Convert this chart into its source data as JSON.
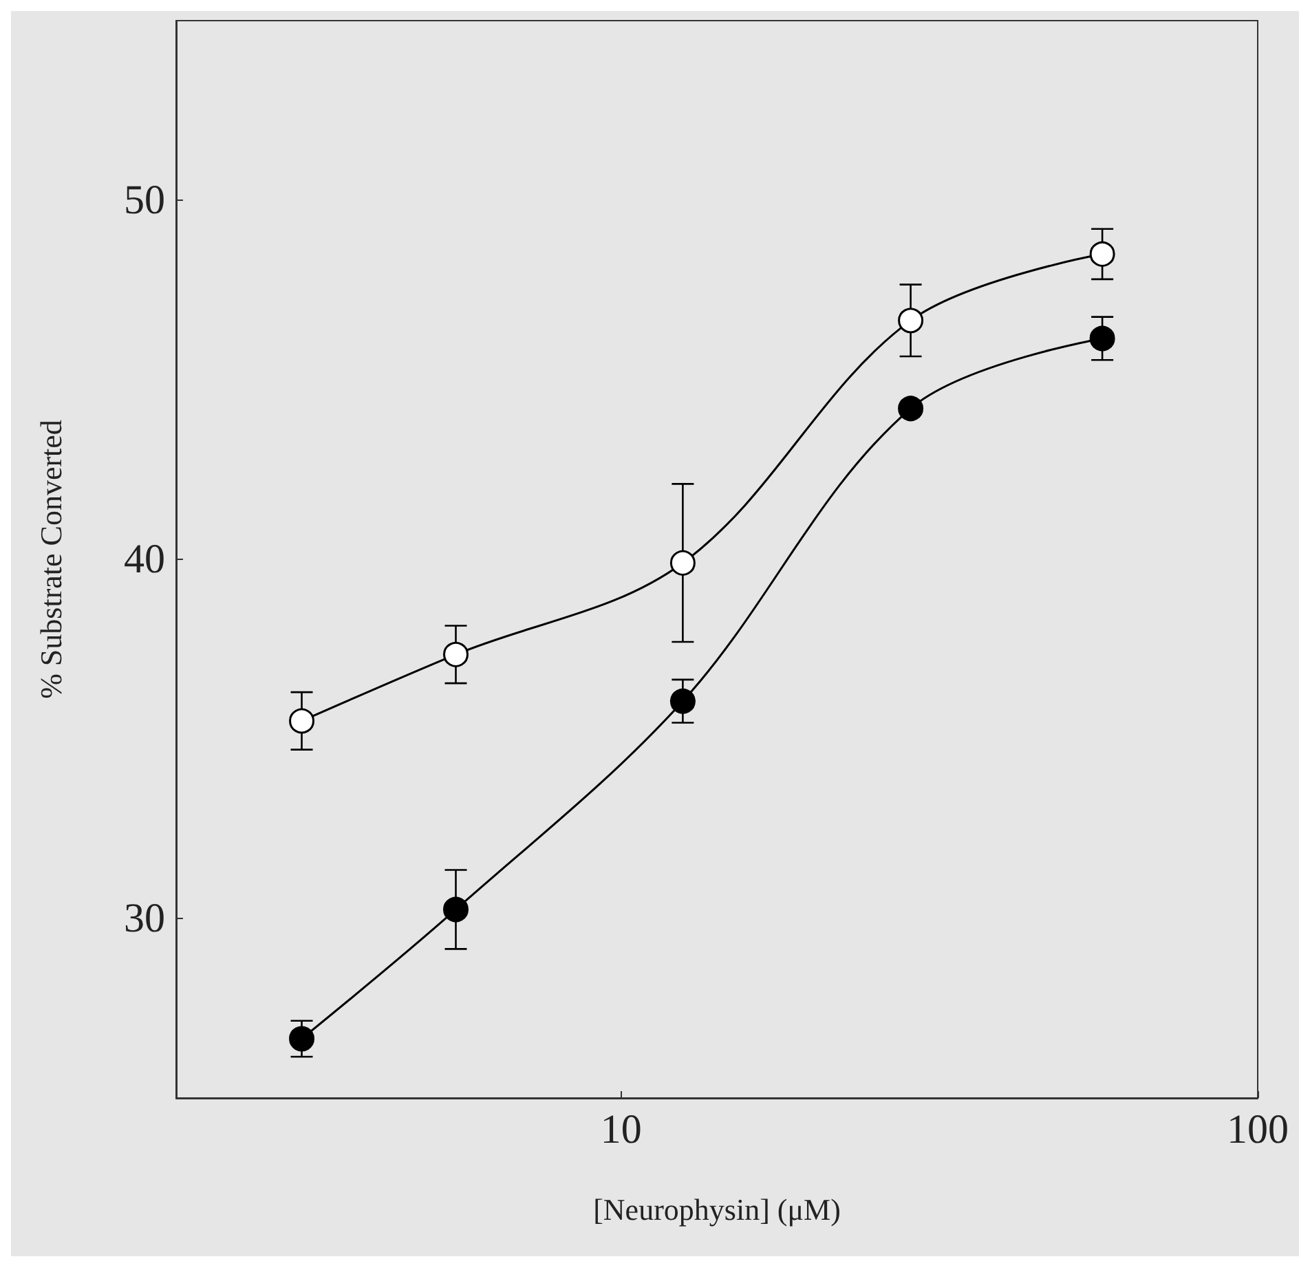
{
  "chart_data": {
    "type": "line",
    "xlabel": "[Neurophysin] (μM)",
    "ylabel": "% Substrate Converted",
    "x": [
      3.15,
      5.5,
      12.5,
      28.5,
      57
    ],
    "series": [
      {
        "color": "#000000",
        "values": [
          35.5,
          37.35,
          39.9,
          46.65,
          48.5
        ],
        "errors": [
          0.8,
          0.8,
          2.2,
          1.0,
          0.7
        ]
      },
      {
        "color": "#000000",
        "values": [
          26.65,
          30.25,
          36.05,
          44.2,
          46.15
        ],
        "errors": [
          0.5,
          1.1,
          0.6,
          null,
          0.6
        ]
      }
    ],
    "xlim": [
      2,
      100
    ],
    "ylim": [
      25,
      55
    ],
    "xticks": [
      10,
      100
    ],
    "yticks": [
      30,
      40,
      50
    ],
    "log": "x",
    "grid": false,
    "marker": "circle",
    "line_style": "solid"
  }
}
